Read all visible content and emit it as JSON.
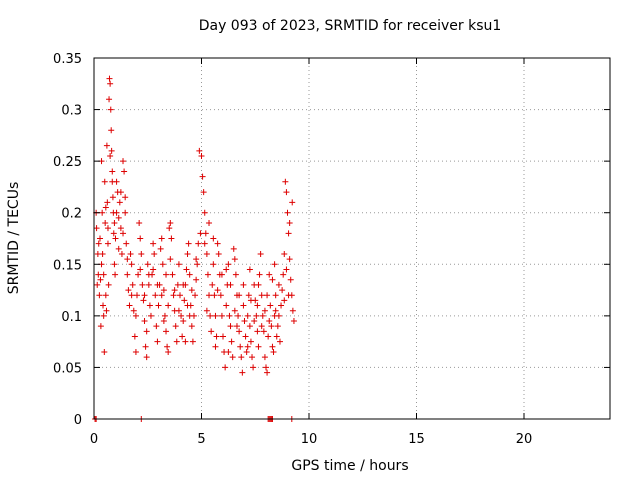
{
  "chart_data": {
    "type": "scatter",
    "title": "Day 093 of 2023, SRMTID for receiver ksu1",
    "xlabel": "GPS time / hours",
    "ylabel": "SRMTID / TECUs",
    "xlim": [
      0,
      24
    ],
    "ylim": [
      0,
      0.35
    ],
    "x_ticks": [
      "0",
      "5",
      "10",
      "15",
      "20"
    ],
    "y_ticks": [
      "0",
      "0.05",
      "0.1",
      "0.15",
      "0.2",
      "0.25",
      "0.3",
      "0.35"
    ],
    "grid": true,
    "marker": "plus",
    "series": [
      {
        "color": "#dd0000",
        "points": [
          [
            0.05,
            0.0
          ],
          [
            0.1,
            0.0
          ],
          [
            2.2,
            0.0
          ],
          [
            8.1,
            0.0
          ],
          [
            8.15,
            0.0
          ],
          [
            8.2,
            0.0
          ],
          [
            8.25,
            0.0
          ],
          [
            8.3,
            0.0
          ],
          [
            9.2,
            0.0
          ],
          [
            0.1,
            0.2
          ],
          [
            0.12,
            0.185
          ],
          [
            0.15,
            0.13
          ],
          [
            0.18,
            0.16
          ],
          [
            0.2,
            0.14
          ],
          [
            0.22,
            0.17
          ],
          [
            0.25,
            0.12
          ],
          [
            0.28,
            0.175
          ],
          [
            0.3,
            0.135
          ],
          [
            0.32,
            0.09
          ],
          [
            0.35,
            0.25
          ],
          [
            0.38,
            0.2
          ],
          [
            0.4,
            0.16
          ],
          [
            0.42,
            0.11
          ],
          [
            0.45,
            0.1
          ],
          [
            0.48,
            0.065
          ],
          [
            0.5,
            0.23
          ],
          [
            0.52,
            0.19
          ],
          [
            0.55,
            0.12
          ],
          [
            0.58,
            0.105
          ],
          [
            0.6,
            0.265
          ],
          [
            0.62,
            0.21
          ],
          [
            0.65,
            0.17
          ],
          [
            0.68,
            0.13
          ],
          [
            0.7,
            0.31
          ],
          [
            0.72,
            0.33
          ],
          [
            0.75,
            0.325
          ],
          [
            0.78,
            0.3
          ],
          [
            0.8,
            0.28
          ],
          [
            0.82,
            0.26
          ],
          [
            0.85,
            0.24
          ],
          [
            0.88,
            0.215
          ],
          [
            0.9,
            0.2
          ],
          [
            0.92,
            0.18
          ],
          [
            0.95,
            0.15
          ],
          [
            0.98,
            0.14
          ],
          [
            1.0,
            0.175
          ],
          [
            1.05,
            0.23
          ],
          [
            1.1,
            0.22
          ],
          [
            1.15,
            0.195
          ],
          [
            1.2,
            0.21
          ],
          [
            1.25,
            0.185
          ],
          [
            1.3,
            0.16
          ],
          [
            1.35,
            0.25
          ],
          [
            1.4,
            0.24
          ],
          [
            1.45,
            0.2
          ],
          [
            1.5,
            0.17
          ],
          [
            1.55,
            0.14
          ],
          [
            1.6,
            0.125
          ],
          [
            1.65,
            0.11
          ],
          [
            1.7,
            0.16
          ],
          [
            1.75,
            0.15
          ],
          [
            1.8,
            0.13
          ],
          [
            1.85,
            0.105
          ],
          [
            1.9,
            0.08
          ],
          [
            1.95,
            0.065
          ],
          [
            2.0,
            0.12
          ],
          [
            2.05,
            0.14
          ],
          [
            2.1,
            0.19
          ],
          [
            2.15,
            0.175
          ],
          [
            2.2,
            0.16
          ],
          [
            2.25,
            0.13
          ],
          [
            2.3,
            0.115
          ],
          [
            2.35,
            0.095
          ],
          [
            2.4,
            0.07
          ],
          [
            2.45,
            0.06
          ],
          [
            2.5,
            0.15
          ],
          [
            2.55,
            0.13
          ],
          [
            2.6,
            0.11
          ],
          [
            2.65,
            0.1
          ],
          [
            2.7,
            0.14
          ],
          [
            2.75,
            0.17
          ],
          [
            2.8,
            0.16
          ],
          [
            2.85,
            0.12
          ],
          [
            2.9,
            0.09
          ],
          [
            2.95,
            0.075
          ],
          [
            3.0,
            0.11
          ],
          [
            3.05,
            0.13
          ],
          [
            3.1,
            0.165
          ],
          [
            3.15,
            0.175
          ],
          [
            3.2,
            0.15
          ],
          [
            3.25,
            0.125
          ],
          [
            3.3,
            0.1
          ],
          [
            3.35,
            0.085
          ],
          [
            3.4,
            0.07
          ],
          [
            3.45,
            0.065
          ],
          [
            3.5,
            0.185
          ],
          [
            3.55,
            0.19
          ],
          [
            3.6,
            0.175
          ],
          [
            3.65,
            0.14
          ],
          [
            3.7,
            0.12
          ],
          [
            3.75,
            0.105
          ],
          [
            3.8,
            0.09
          ],
          [
            3.85,
            0.075
          ],
          [
            3.9,
            0.13
          ],
          [
            3.95,
            0.15
          ],
          [
            4.0,
            0.12
          ],
          [
            4.05,
            0.1
          ],
          [
            4.1,
            0.08
          ],
          [
            4.15,
            0.095
          ],
          [
            4.2,
            0.115
          ],
          [
            4.25,
            0.13
          ],
          [
            4.3,
            0.145
          ],
          [
            4.35,
            0.16
          ],
          [
            4.4,
            0.17
          ],
          [
            4.45,
            0.14
          ],
          [
            4.5,
            0.11
          ],
          [
            4.55,
            0.09
          ],
          [
            4.6,
            0.075
          ],
          [
            4.65,
            0.1
          ],
          [
            4.7,
            0.12
          ],
          [
            4.75,
            0.135
          ],
          [
            4.8,
            0.15
          ],
          [
            4.85,
            0.17
          ],
          [
            4.9,
            0.26
          ],
          [
            5.0,
            0.255
          ],
          [
            5.05,
            0.235
          ],
          [
            5.1,
            0.22
          ],
          [
            5.15,
            0.2
          ],
          [
            5.2,
            0.18
          ],
          [
            5.25,
            0.16
          ],
          [
            5.3,
            0.14
          ],
          [
            5.35,
            0.12
          ],
          [
            5.4,
            0.1
          ],
          [
            5.45,
            0.085
          ],
          [
            5.5,
            0.13
          ],
          [
            5.55,
            0.15
          ],
          [
            5.6,
            0.12
          ],
          [
            5.65,
            0.1
          ],
          [
            5.7,
            0.08
          ],
          [
            5.75,
            0.17
          ],
          [
            5.8,
            0.16
          ],
          [
            5.85,
            0.14
          ],
          [
            5.9,
            0.12
          ],
          [
            5.95,
            0.1
          ],
          [
            6.0,
            0.08
          ],
          [
            6.05,
            0.065
          ],
          [
            6.1,
            0.05
          ],
          [
            6.15,
            0.11
          ],
          [
            6.2,
            0.13
          ],
          [
            6.25,
            0.15
          ],
          [
            6.3,
            0.1
          ],
          [
            6.35,
            0.09
          ],
          [
            6.4,
            0.075
          ],
          [
            6.45,
            0.06
          ],
          [
            6.5,
            0.165
          ],
          [
            6.55,
            0.155
          ],
          [
            6.6,
            0.14
          ],
          [
            6.65,
            0.12
          ],
          [
            6.7,
            0.1
          ],
          [
            6.75,
            0.085
          ],
          [
            6.8,
            0.07
          ],
          [
            6.85,
            0.06
          ],
          [
            6.9,
            0.045
          ],
          [
            6.95,
            0.11
          ],
          [
            7.0,
            0.095
          ],
          [
            7.05,
            0.08
          ],
          [
            7.1,
            0.065
          ],
          [
            7.15,
            0.1
          ],
          [
            7.2,
            0.12
          ],
          [
            7.25,
            0.09
          ],
          [
            7.3,
            0.075
          ],
          [
            7.35,
            0.06
          ],
          [
            7.4,
            0.05
          ],
          [
            7.45,
            0.13
          ],
          [
            7.5,
            0.115
          ],
          [
            7.55,
            0.1
          ],
          [
            7.6,
            0.085
          ],
          [
            7.65,
            0.07
          ],
          [
            7.7,
            0.14
          ],
          [
            7.75,
            0.16
          ],
          [
            7.8,
            0.12
          ],
          [
            7.85,
            0.1
          ],
          [
            7.9,
            0.085
          ],
          [
            7.95,
            0.06
          ],
          [
            8.0,
            0.05
          ],
          [
            8.05,
            0.045
          ],
          [
            8.1,
            0.08
          ],
          [
            8.15,
            0.095
          ],
          [
            8.2,
            0.11
          ],
          [
            8.25,
            0.09
          ],
          [
            8.3,
            0.07
          ],
          [
            8.35,
            0.065
          ],
          [
            8.4,
            0.1
          ],
          [
            8.45,
            0.12
          ],
          [
            8.5,
            0.08
          ],
          [
            8.55,
            0.09
          ],
          [
            8.6,
            0.1
          ],
          [
            8.65,
            0.075
          ],
          [
            8.7,
            0.11
          ],
          [
            8.75,
            0.125
          ],
          [
            8.8,
            0.14
          ],
          [
            8.85,
            0.16
          ],
          [
            8.9,
            0.23
          ],
          [
            8.95,
            0.22
          ],
          [
            9.0,
            0.2
          ],
          [
            9.05,
            0.18
          ],
          [
            9.1,
            0.155
          ],
          [
            9.15,
            0.135
          ],
          [
            9.2,
            0.12
          ],
          [
            9.25,
            0.105
          ],
          [
            9.3,
            0.095
          ],
          [
            9.22,
            0.21
          ],
          [
            9.1,
            0.19
          ],
          [
            8.95,
            0.145
          ],
          [
            8.85,
            0.115
          ],
          [
            8.6,
            0.13
          ],
          [
            8.4,
            0.15
          ],
          [
            8.3,
            0.135
          ],
          [
            8.05,
            0.12
          ],
          [
            7.95,
            0.105
          ],
          [
            7.8,
            0.09
          ],
          [
            7.6,
            0.11
          ],
          [
            7.45,
            0.095
          ],
          [
            7.3,
            0.115
          ],
          [
            7.15,
            0.07
          ],
          [
            6.95,
            0.13
          ],
          [
            6.75,
            0.12
          ],
          [
            6.55,
            0.105
          ],
          [
            6.35,
            0.13
          ],
          [
            6.15,
            0.145
          ],
          [
            5.95,
            0.14
          ],
          [
            5.75,
            0.125
          ],
          [
            5.55,
            0.175
          ],
          [
            5.35,
            0.19
          ],
          [
            5.15,
            0.17
          ],
          [
            4.95,
            0.18
          ],
          [
            4.75,
            0.155
          ],
          [
            4.55,
            0.125
          ],
          [
            4.35,
            0.11
          ],
          [
            4.15,
            0.13
          ],
          [
            3.95,
            0.105
          ],
          [
            3.75,
            0.125
          ],
          [
            3.55,
            0.155
          ],
          [
            3.35,
            0.14
          ],
          [
            3.15,
            0.12
          ],
          [
            2.95,
            0.13
          ],
          [
            2.75,
            0.145
          ],
          [
            2.55,
            0.14
          ],
          [
            2.35,
            0.12
          ],
          [
            2.15,
            0.145
          ],
          [
            1.95,
            0.1
          ],
          [
            1.75,
            0.12
          ],
          [
            1.55,
            0.155
          ],
          [
            1.35,
            0.18
          ],
          [
            1.15,
            0.165
          ],
          [
            0.95,
            0.19
          ],
          [
            0.75,
            0.255
          ],
          [
            0.55,
            0.205
          ],
          [
            0.35,
            0.15
          ],
          [
            1.25,
            0.22
          ],
          [
            1.45,
            0.215
          ],
          [
            0.85,
            0.23
          ],
          [
            0.65,
            0.185
          ],
          [
            0.45,
            0.14
          ],
          [
            1.05,
            0.2
          ],
          [
            3.45,
            0.11
          ],
          [
            4.45,
            0.1
          ],
          [
            5.65,
            0.07
          ],
          [
            6.65,
            0.09
          ],
          [
            7.65,
            0.13
          ],
          [
            8.45,
            0.105
          ],
          [
            9.05,
            0.12
          ],
          [
            2.45,
            0.085
          ],
          [
            3.25,
            0.095
          ],
          [
            4.25,
            0.075
          ],
          [
            5.25,
            0.105
          ],
          [
            6.25,
            0.065
          ],
          [
            7.25,
            0.145
          ],
          [
            8.15,
            0.14
          ]
        ]
      }
    ]
  }
}
